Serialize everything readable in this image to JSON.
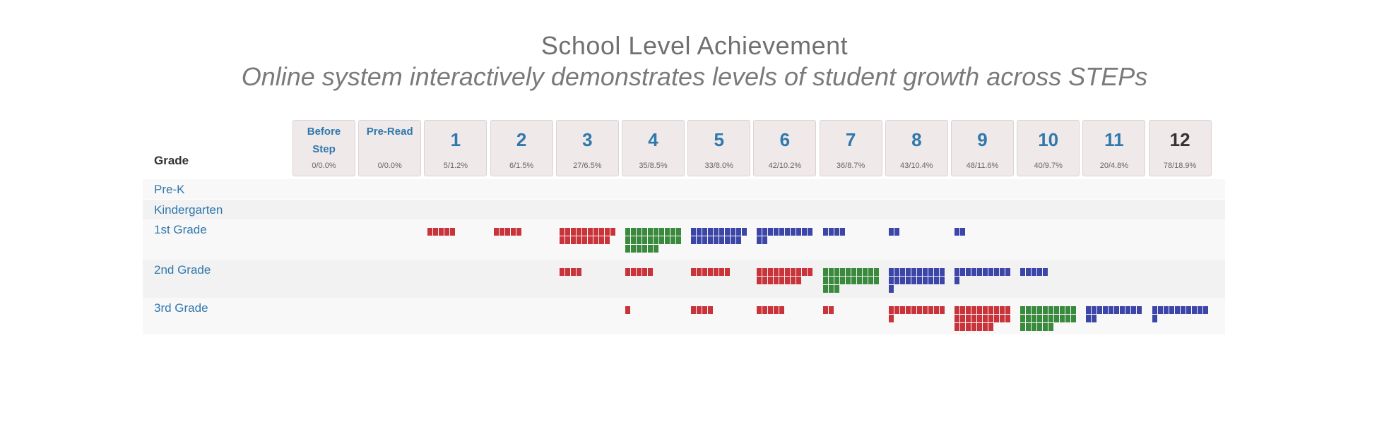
{
  "title": "School Level Achievement",
  "subtitle": "Online system interactively demonstrates levels of student growth across STEPs",
  "grade_header": "Grade",
  "colors": {
    "red": "#c9343b",
    "green": "#3a8a3d",
    "blue": "#3b46a8",
    "link": "#2f78ad"
  },
  "columns": [
    {
      "label": "Before Step",
      "stat": "0/0.0%"
    },
    {
      "label": "Pre-Read",
      "stat": "0/0.0%"
    },
    {
      "label": "1",
      "stat": "5/1.2%"
    },
    {
      "label": "2",
      "stat": "6/1.5%"
    },
    {
      "label": "3",
      "stat": "27/6.5%"
    },
    {
      "label": "4",
      "stat": "35/8.5%"
    },
    {
      "label": "5",
      "stat": "33/8.0%"
    },
    {
      "label": "6",
      "stat": "42/10.2%"
    },
    {
      "label": "7",
      "stat": "36/8.7%"
    },
    {
      "label": "8",
      "stat": "43/10.4%"
    },
    {
      "label": "9",
      "stat": "48/11.6%"
    },
    {
      "label": "10",
      "stat": "40/9.7%"
    },
    {
      "label": "11",
      "stat": "20/4.8%"
    },
    {
      "label": "12",
      "stat": "78/18.9%"
    }
  ],
  "rows": [
    {
      "label": "Pre-K",
      "cells": []
    },
    {
      "label": "Kindergarten",
      "cells": []
    },
    {
      "label": "1st Grade",
      "cells": [
        {
          "col": 2,
          "count": 5,
          "color": "red"
        },
        {
          "col": 3,
          "count": 5,
          "color": "red"
        },
        {
          "col": 4,
          "count": 19,
          "color": "red"
        },
        {
          "col": 5,
          "count": 26,
          "color": "green"
        },
        {
          "col": 6,
          "count": 19,
          "color": "blue"
        },
        {
          "col": 7,
          "count": 12,
          "color": "blue"
        },
        {
          "col": 8,
          "count": 4,
          "color": "blue"
        },
        {
          "col": 9,
          "count": 2,
          "color": "blue"
        },
        {
          "col": 10,
          "count": 2,
          "color": "blue"
        }
      ]
    },
    {
      "label": "2nd Grade",
      "cells": [
        {
          "col": 4,
          "count": 4,
          "color": "red"
        },
        {
          "col": 5,
          "count": 5,
          "color": "red"
        },
        {
          "col": 6,
          "count": 7,
          "color": "red"
        },
        {
          "col": 7,
          "count": 18,
          "color": "red"
        },
        {
          "col": 8,
          "count": 23,
          "color": "green"
        },
        {
          "col": 9,
          "count": 21,
          "color": "blue"
        },
        {
          "col": 10,
          "count": 11,
          "color": "blue"
        },
        {
          "col": 11,
          "count": 5,
          "color": "blue"
        }
      ]
    },
    {
      "label": "3rd Grade",
      "cells": [
        {
          "col": 5,
          "count": 1,
          "color": "red"
        },
        {
          "col": 6,
          "count": 4,
          "color": "red"
        },
        {
          "col": 7,
          "count": 5,
          "color": "red"
        },
        {
          "col": 8,
          "count": 2,
          "color": "red"
        },
        {
          "col": 9,
          "count": 11,
          "color": "red"
        },
        {
          "col": 10,
          "count": 27,
          "color": "red"
        },
        {
          "col": 11,
          "count": 26,
          "color": "green"
        },
        {
          "col": 12,
          "count": 12,
          "color": "blue"
        },
        {
          "col": 13,
          "count": 11,
          "color": "blue"
        }
      ]
    }
  ]
}
